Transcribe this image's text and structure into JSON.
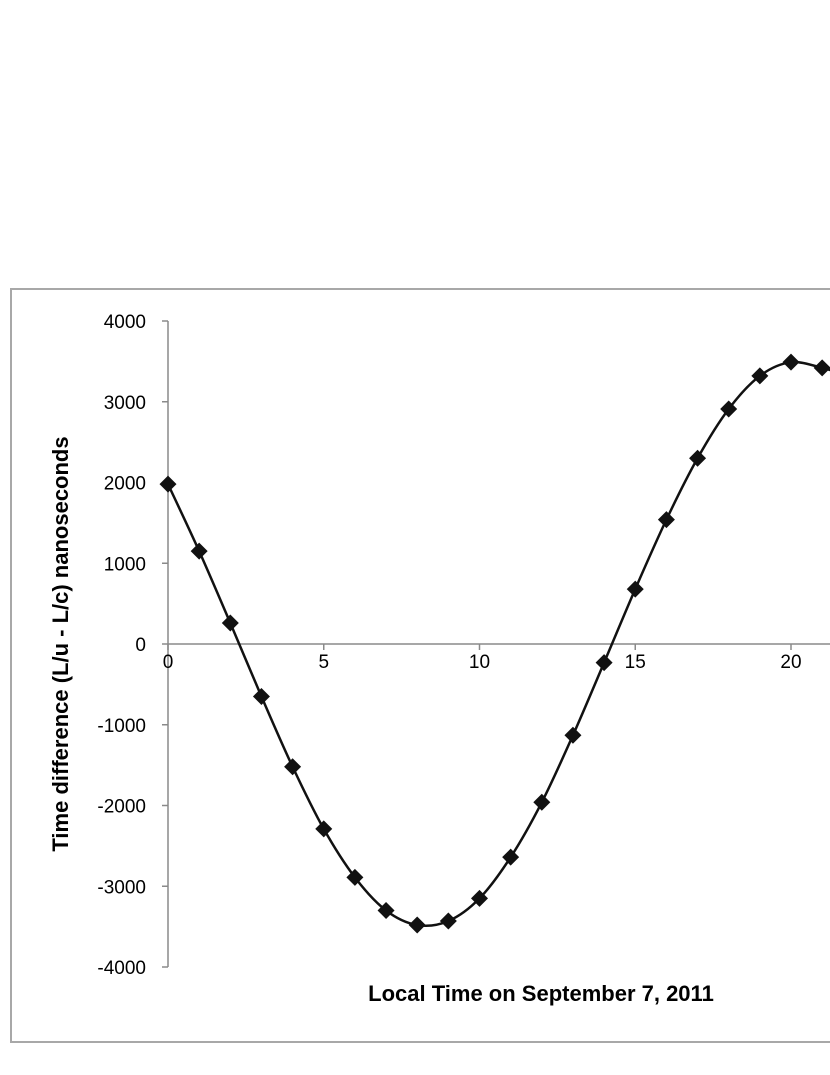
{
  "chart_data": {
    "type": "scatter",
    "title": "",
    "xlabel": "Local Time on September 7, 2011",
    "ylabel": "Time difference (L/u - L/c) nanoseconds",
    "xlim": [
      0,
      21.5
    ],
    "ylim": [
      -4000,
      4000
    ],
    "x_ticks": [
      0,
      5,
      10,
      15,
      20
    ],
    "y_ticks": [
      4000,
      3000,
      2000,
      1000,
      0,
      -1000,
      -2000,
      -3000,
      -4000
    ],
    "grid": false,
    "legend": "none",
    "series": [
      {
        "marker": "diamond",
        "line": "smooth",
        "color": "#111111",
        "x": [
          0,
          1,
          2,
          3,
          4,
          5,
          6,
          7,
          8,
          9,
          10,
          11,
          12,
          13,
          14,
          15,
          16,
          17,
          18,
          19,
          20,
          21
        ],
        "y": [
          1980,
          1150,
          260,
          -650,
          -1520,
          -2290,
          -2890,
          -3300,
          -3480,
          -3430,
          -3150,
          -2640,
          -1960,
          -1130,
          -230,
          680,
          1540,
          2300,
          2910,
          3320,
          3490,
          3420
        ]
      }
    ]
  }
}
